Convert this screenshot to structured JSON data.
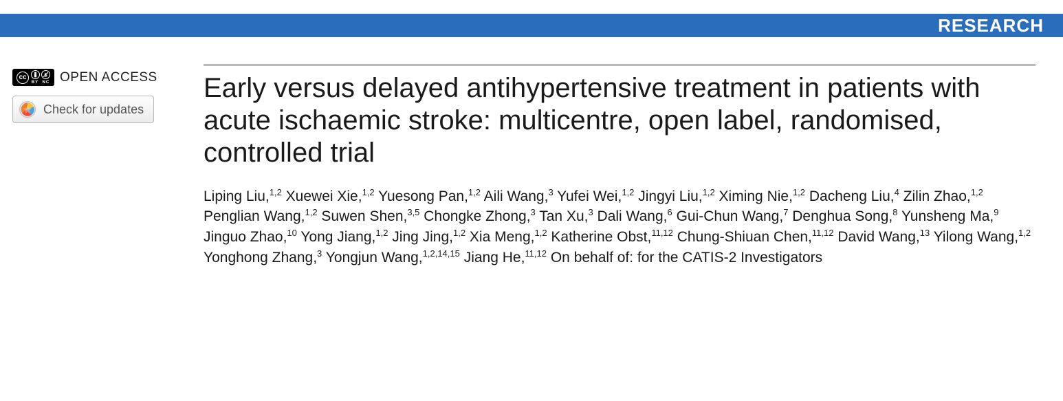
{
  "header": {
    "label": "RESEARCH",
    "bg_color": "#2a6ebb",
    "text_color": "#ffffff"
  },
  "sidebar": {
    "open_access_label": "OPEN ACCESS",
    "cc_text": "cc",
    "cc_by": "BY",
    "cc_nc": "NC",
    "check_updates_label": "Check for updates"
  },
  "article": {
    "title": "Early versus delayed antihypertensive treatment in patients with acute ischaemic stroke: multicentre, open label, randomised, controlled trial",
    "authors": [
      {
        "name": "Liping Liu",
        "aff": "1,2"
      },
      {
        "name": "Xuewei Xie",
        "aff": "1,2"
      },
      {
        "name": "Yuesong Pan",
        "aff": "1,2"
      },
      {
        "name": "Aili Wang",
        "aff": "3"
      },
      {
        "name": "Yufei Wei",
        "aff": "1,2"
      },
      {
        "name": "Jingyi Liu",
        "aff": "1,2"
      },
      {
        "name": "Ximing Nie",
        "aff": "1,2"
      },
      {
        "name": "Dacheng Liu",
        "aff": "4"
      },
      {
        "name": "Zilin Zhao",
        "aff": "1,2"
      },
      {
        "name": "Penglian Wang",
        "aff": "1,2"
      },
      {
        "name": "Suwen Shen",
        "aff": "3,5"
      },
      {
        "name": "Chongke Zhong",
        "aff": "3"
      },
      {
        "name": "Tan Xu",
        "aff": "3"
      },
      {
        "name": "Dali Wang",
        "aff": "6"
      },
      {
        "name": "Gui-Chun Wang",
        "aff": "7"
      },
      {
        "name": "Denghua Song",
        "aff": "8"
      },
      {
        "name": "Yunsheng Ma",
        "aff": "9"
      },
      {
        "name": "Jinguo Zhao",
        "aff": "10"
      },
      {
        "name": "Yong Jiang",
        "aff": "1,2"
      },
      {
        "name": "Jing Jing",
        "aff": "1,2"
      },
      {
        "name": "Xia Meng",
        "aff": "1,2"
      },
      {
        "name": "Katherine Obst",
        "aff": "11,12"
      },
      {
        "name": "Chung-Shiuan Chen",
        "aff": "11,12"
      },
      {
        "name": "David Wang",
        "aff": "13"
      },
      {
        "name": "Yilong Wang",
        "aff": "1,2"
      },
      {
        "name": "Yonghong Zhang",
        "aff": "3"
      },
      {
        "name": "Yongjun Wang",
        "aff": "1,2,14,15"
      },
      {
        "name": "Jiang He",
        "aff": "11,12"
      }
    ],
    "behalf_text": "On behalf of: for the CATIS-2 Investigators",
    "title_fontsize": 40,
    "author_fontsize": 21,
    "rule_color": "#000000"
  },
  "colors": {
    "background": "#ffffff",
    "text": "#1a1a1a"
  }
}
